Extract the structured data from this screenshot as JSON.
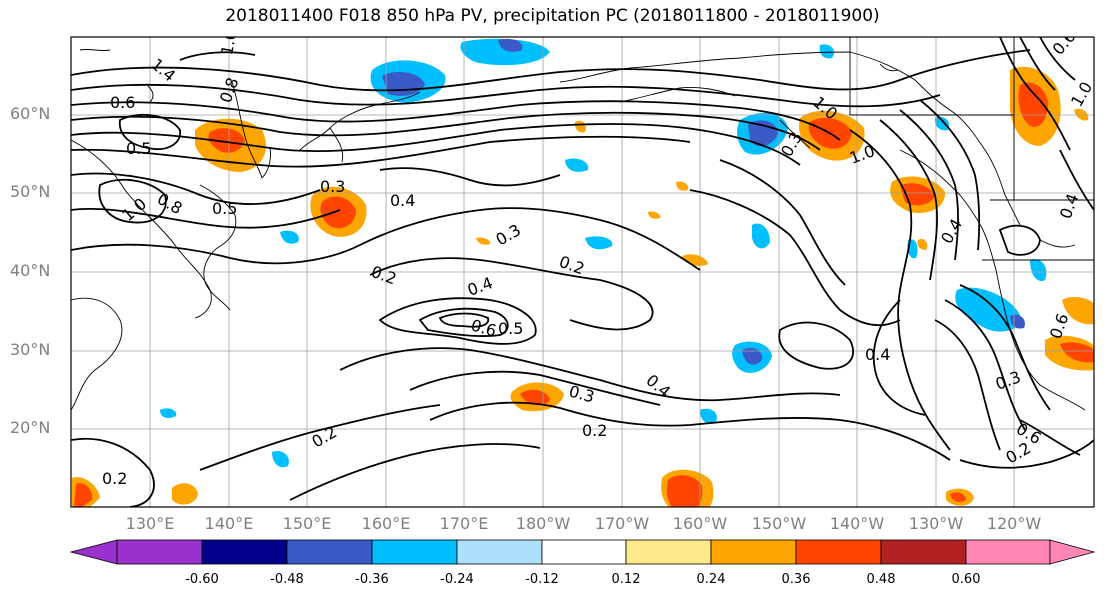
{
  "title": "2018011400 F018 850 hPa PV, precipitation PC (2018011800 - 2018011900)",
  "map": {
    "lat_labels": [
      "60°N",
      "50°N",
      "40°N",
      "30°N",
      "20°N"
    ],
    "lon_labels": [
      "130°E",
      "140°E",
      "150°E",
      "160°E",
      "170°E",
      "180°W",
      "170°W",
      "160°W",
      "150°W",
      "140°W",
      "130°W",
      "120°W"
    ],
    "contour_labels": [
      {
        "text": "1.4"
      },
      {
        "text": "1.0"
      },
      {
        "text": "0.8"
      },
      {
        "text": "0.6"
      },
      {
        "text": "0.5"
      },
      {
        "text": "0.8"
      },
      {
        "text": "1.0"
      },
      {
        "text": "0.5"
      },
      {
        "text": "0.3"
      },
      {
        "text": "0.4"
      },
      {
        "text": "0.3"
      },
      {
        "text": "0.2"
      },
      {
        "text": "0.2"
      },
      {
        "text": "0.4"
      },
      {
        "text": "0.6"
      },
      {
        "text": "0.5"
      },
      {
        "text": "0.4"
      },
      {
        "text": "0.3"
      },
      {
        "text": "0.2"
      },
      {
        "text": "0.2"
      },
      {
        "text": "0.2"
      },
      {
        "text": "1.0"
      },
      {
        "text": "1.0"
      },
      {
        "text": "0.3"
      },
      {
        "text": "0.4"
      },
      {
        "text": "0.4"
      },
      {
        "text": "0.6"
      },
      {
        "text": "0.3"
      },
      {
        "text": "0.6"
      },
      {
        "text": "0.2"
      },
      {
        "text": "0.6"
      },
      {
        "text": "0.4"
      },
      {
        "text": "1.0"
      }
    ]
  },
  "colorbar": {
    "colors": [
      "#9932CC",
      "#00008B",
      "#3A5BC7",
      "#00BFFF",
      "#ADE0FA",
      "#FFFFFF",
      "#FFE98A",
      "#FFA500",
      "#FF4500",
      "#B22222",
      "#FF85B3"
    ],
    "tick_labels": [
      "-0.60",
      "-0.48",
      "-0.36",
      "-0.24",
      "-0.12",
      "0.12",
      "0.24",
      "0.36",
      "0.48",
      "0.60"
    ]
  }
}
